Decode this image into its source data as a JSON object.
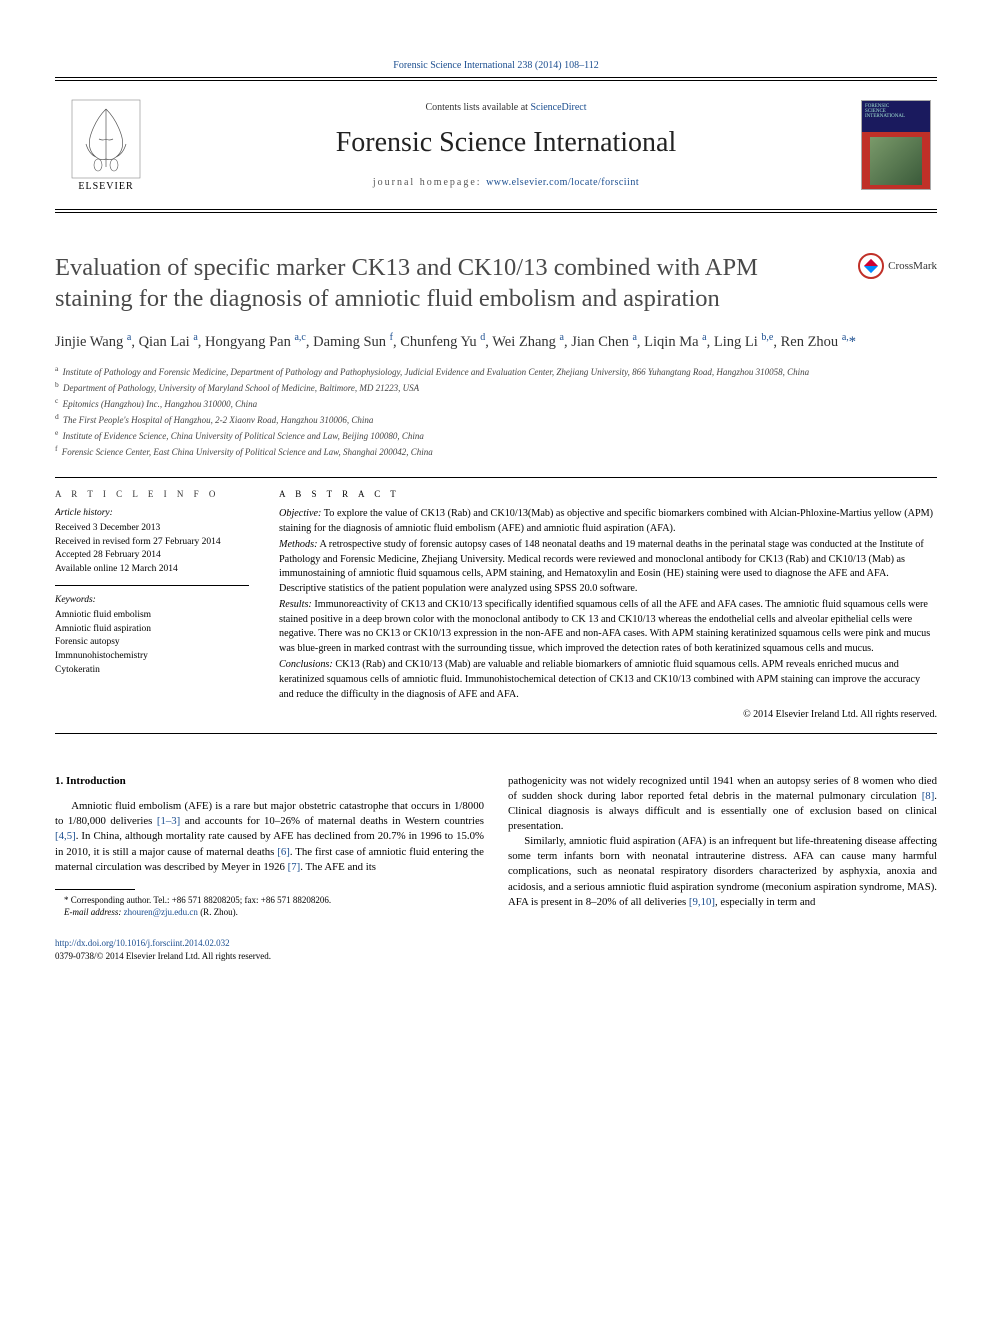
{
  "header": {
    "journal_ref_link": "Forensic Science International 238 (2014) 108–112",
    "contents_line_pre": "Contents lists available at ",
    "contents_line_link": "ScienceDirect",
    "journal_title": "Forensic Science International",
    "homepage_pre": "journal homepage: ",
    "homepage_url": "www.elsevier.com/locate/forsciint",
    "elsevier_label": "ELSEVIER"
  },
  "crossmark_label": "CrossMark",
  "title": "Evaluation of specific marker CK13 and CK10/13 combined with APM staining for the diagnosis of amniotic fluid embolism and aspiration",
  "authors_html": "Jinjie Wang <sup>a</sup>, Qian Lai <sup>a</sup>, Hongyang Pan <sup>a,c</sup>, Daming Sun <sup>f</sup>, Chunfeng Yu <sup>d</sup>, Wei Zhang <sup>a</sup>, Jian Chen <sup>a</sup>, Liqin Ma <sup>a</sup>, Ling Li <sup>b,e</sup>, Ren Zhou <sup>a,</sup><span class='corr'>*</span>",
  "affiliations": [
    {
      "sup": "a",
      "text": "Institute of Pathology and Forensic Medicine, Department of Pathology and Pathophysiology, Judicial Evidence and Evaluation Center, Zhejiang University, 866 Yuhangtang Road, Hangzhou 310058, China"
    },
    {
      "sup": "b",
      "text": "Department of Pathology, University of Maryland School of Medicine, Baltimore, MD 21223, USA"
    },
    {
      "sup": "c",
      "text": "Epitomics (Hangzhou) Inc., Hangzhou 310000, China"
    },
    {
      "sup": "d",
      "text": "The First People's Hospital of Hangzhou, 2-2 Xiaonv Road, Hangzhou 310006, China"
    },
    {
      "sup": "e",
      "text": "Institute of Evidence Science, China University of Political Science and Law, Beijing 100080, China"
    },
    {
      "sup": "f",
      "text": "Forensic Science Center, East China University of Political Science and Law, Shanghai 200042, China"
    }
  ],
  "article_info": {
    "heading": "A R T I C L E  I N F O",
    "history_label": "Article history:",
    "history": [
      "Received 3 December 2013",
      "Received in revised form 27 February 2014",
      "Accepted 28 February 2014",
      "Available online 12 March 2014"
    ],
    "keywords_label": "Keywords:",
    "keywords": [
      "Amniotic fluid embolism",
      "Amniotic fluid aspiration",
      "Forensic autopsy",
      "Immnunohistochemistry",
      "Cytokeratin"
    ]
  },
  "abstract": {
    "heading": "A B S T R A C T",
    "objective_label": "Objective:",
    "objective": "To explore the value of CK13 (Rab) and CK10/13(Mab) as objective and specific biomarkers combined with Alcian-Phloxine-Martius yellow (APM) staining for the diagnosis of amniotic fluid embolism (AFE) and amniotic fluid aspiration (AFA).",
    "methods_label": "Methods:",
    "methods": "A retrospective study of forensic autopsy cases of 148 neonatal deaths and 19 maternal deaths in the perinatal stage was conducted at the Institute of Pathology and Forensic Medicine, Zhejiang University. Medical records were reviewed and monoclonal antibody for CK13 (Rab) and CK10/13 (Mab) as immunostaining of amniotic fluid squamous cells, APM staining, and Hematoxylin and Eosin (HE) staining were used to diagnose the AFE and AFA. Descriptive statistics of the patient population were analyzed using SPSS 20.0 software.",
    "results_label": "Results:",
    "results": "Immunoreactivity of CK13 and CK10/13 specifically identified squamous cells of all the AFE and AFA cases. The amniotic fluid squamous cells were stained positive in a deep brown color with the monoclonal antibody to CK 13 and CK10/13 whereas the endothelial cells and alveolar epithelial cells were negative. There was no CK13 or CK10/13 expression in the non-AFE and non-AFA cases. With APM staining keratinized squamous cells were pink and mucus was blue-green in marked contrast with the surrounding tissue, which improved the detection rates of both keratinized squamous cells and mucus.",
    "conclusions_label": "Conclusions:",
    "conclusions": "CK13 (Rab) and CK10/13 (Mab) are valuable and reliable biomarkers of amniotic fluid squamous cells. APM reveals enriched mucus and keratinized squamous cells of amniotic fluid. Immunohistochemical detection of CK13 and CK10/13 combined with APM staining can improve the accuracy and reduce the difficulty in the diagnosis of AFE and AFA.",
    "copyright": "© 2014 Elsevier Ireland Ltd. All rights reserved."
  },
  "body": {
    "section_heading": "1. Introduction",
    "col1_p1_pre": "Amniotic fluid embolism (AFE) is a rare but major obstetric catastrophe that occurs in 1/8000 to 1/80,000 deliveries ",
    "ref_1_3": "[1–3]",
    "col1_p1_mid1": " and accounts for 10–26% of maternal deaths in Western countries ",
    "ref_4_5": "[4,5]",
    "col1_p1_mid2": ". In China, although mortality rate caused by AFE has declined from 20.7% in 1996 to 15.0% in 2010, it is still a major cause of maternal deaths ",
    "ref_6": "[6]",
    "col1_p1_mid3": ". The first case of amniotic fluid entering the maternal circulation was described by Meyer in 1926 ",
    "ref_7": "[7]",
    "col1_p1_post": ". The AFE and its",
    "col2_p1_pre": "pathogenicity was not widely recognized until 1941 when an autopsy series of 8 women who died of sudden shock during labor reported fetal debris in the maternal pulmonary circulation ",
    "ref_8": "[8]",
    "col2_p1_post": ". Clinical diagnosis is always difficult and is essentially one of exclusion based on clinical presentation.",
    "col2_p2_pre": "Similarly, amniotic fluid aspiration (AFA) is an infrequent but life-threatening disease affecting some term infants born with neonatal intrauterine distress. AFA can cause many harmful complications, such as neonatal respiratory disorders characterized by asphyxia, anoxia and acidosis, and a serious amniotic fluid aspiration syndrome (meconium aspiration syndrome, MAS). AFA is present in 8–20% of all deliveries ",
    "ref_9_10": "[9,10]",
    "col2_p2_post": ", especially in term and"
  },
  "footnote": {
    "line1_pre": "* Corresponding author. Tel.: +86 571 88208205; fax: +86 571 88208206.",
    "line2_pre": "E-mail address: ",
    "email": "zhouren@zju.edu.cn",
    "line2_post": " (R. Zhou)."
  },
  "doi": {
    "url": "http://dx.doi.org/10.1016/j.forsciint.2014.02.032",
    "issn_line": "0379-0738/© 2014 Elsevier Ireland Ltd. All rights reserved."
  },
  "colors": {
    "link": "#1a4d8f",
    "title_gray": "#494949",
    "rule": "#000000",
    "cover_blue": "#1a1a5e",
    "cover_red": "#c03028"
  }
}
